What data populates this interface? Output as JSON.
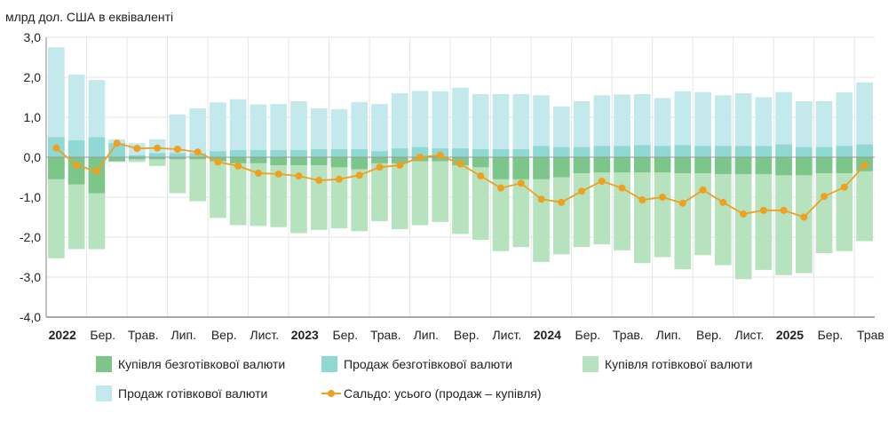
{
  "chart_data": {
    "type": "bar",
    "title": "",
    "ylabel": "млрд дол. США в еквіваленті",
    "xlabel": "",
    "ylim": [
      -4,
      3
    ],
    "yticks": [
      "3,0",
      "2,0",
      "1,0",
      "0,0",
      "-1,0",
      "-2,0",
      "-3,0",
      "-4,0"
    ],
    "x_tick_labels": [
      {
        "i": 0,
        "label": "2022",
        "bold": true
      },
      {
        "i": 2,
        "label": "Бер.",
        "bold": false
      },
      {
        "i": 4,
        "label": "Трав.",
        "bold": false
      },
      {
        "i": 6,
        "label": "Лип.",
        "bold": false
      },
      {
        "i": 8,
        "label": "Вер.",
        "bold": false
      },
      {
        "i": 10,
        "label": "Лист.",
        "bold": false
      },
      {
        "i": 12,
        "label": "2023",
        "bold": true
      },
      {
        "i": 14,
        "label": "Бер.",
        "bold": false
      },
      {
        "i": 16,
        "label": "Трав.",
        "bold": false
      },
      {
        "i": 18,
        "label": "Лип.",
        "bold": false
      },
      {
        "i": 20,
        "label": "Вер.",
        "bold": false
      },
      {
        "i": 22,
        "label": "Лист.",
        "bold": false
      },
      {
        "i": 24,
        "label": "2024",
        "bold": true
      },
      {
        "i": 26,
        "label": "Бер.",
        "bold": false
      },
      {
        "i": 28,
        "label": "Трав.",
        "bold": false
      },
      {
        "i": 30,
        "label": "Лип.",
        "bold": false
      },
      {
        "i": 32,
        "label": "Вер.",
        "bold": false
      },
      {
        "i": 34,
        "label": "Лист.",
        "bold": false
      },
      {
        "i": 36,
        "label": "2025",
        "bold": true
      },
      {
        "i": 38,
        "label": "Бер.",
        "bold": false
      },
      {
        "i": 40,
        "label": "Трав",
        "bold": false
      }
    ],
    "n_points": 41,
    "grid": true,
    "legend_position": "bottom",
    "series": [
      {
        "name": "Купівля безготівкової валюти",
        "kind": "bar",
        "color": "#7cc68a",
        "values": [
          -0.55,
          -0.68,
          -0.9,
          -0.1,
          -0.05,
          -0.05,
          -0.05,
          -0.05,
          -0.1,
          -0.15,
          -0.15,
          -0.2,
          -0.2,
          -0.2,
          -0.25,
          -0.3,
          -0.15,
          -0.15,
          -0.1,
          -0.1,
          -0.2,
          -0.25,
          -0.55,
          -0.55,
          -0.55,
          -0.5,
          -0.4,
          -0.38,
          -0.38,
          -0.38,
          -0.38,
          -0.4,
          -0.4,
          -0.42,
          -0.42,
          -0.42,
          -0.45,
          -0.45,
          -0.4,
          -0.4,
          -0.35
        ]
      },
      {
        "name": "Продаж безготівкової валюти",
        "kind": "bar",
        "color": "#8fd8d4",
        "values": [
          0.5,
          0.42,
          0.5,
          0.35,
          0.05,
          0.1,
          0.1,
          0.1,
          0.15,
          0.18,
          0.18,
          0.18,
          0.18,
          0.2,
          0.2,
          0.2,
          0.15,
          0.22,
          0.25,
          0.22,
          0.22,
          0.2,
          0.2,
          0.2,
          0.28,
          0.25,
          0.25,
          0.28,
          0.28,
          0.3,
          0.28,
          0.3,
          0.28,
          0.28,
          0.28,
          0.28,
          0.32,
          0.25,
          0.25,
          0.28,
          0.32
        ]
      },
      {
        "name": "Купівля готівкової валюти",
        "kind": "bar",
        "color": "#b6e3bd",
        "values": [
          -2.53,
          -2.3,
          -2.3,
          -0.12,
          -0.12,
          -0.22,
          -0.9,
          -1.1,
          -1.52,
          -1.7,
          -1.72,
          -1.75,
          -1.9,
          -1.82,
          -1.78,
          -1.85,
          -1.6,
          -1.8,
          -1.7,
          -1.62,
          -1.92,
          -2.07,
          -2.35,
          -2.25,
          -2.62,
          -2.43,
          -2.25,
          -2.18,
          -2.33,
          -2.65,
          -2.5,
          -2.8,
          -2.45,
          -2.7,
          -3.05,
          -2.82,
          -2.95,
          -2.9,
          -2.4,
          -2.35,
          -2.1
        ]
      },
      {
        "name": "Продаж готівкової валюти",
        "kind": "bar",
        "color": "#c4e9ec",
        "values": [
          2.75,
          2.07,
          1.93,
          0.45,
          0.35,
          0.45,
          1.07,
          1.22,
          1.37,
          1.45,
          1.32,
          1.33,
          1.4,
          1.22,
          1.2,
          1.38,
          1.33,
          1.6,
          1.66,
          1.65,
          1.74,
          1.58,
          1.58,
          1.58,
          1.55,
          1.27,
          1.4,
          1.55,
          1.57,
          1.58,
          1.48,
          1.65,
          1.63,
          1.55,
          1.6,
          1.5,
          1.63,
          1.4,
          1.4,
          1.62,
          1.87
        ]
      },
      {
        "name": "Сальдо: усього (продаж – купівля)",
        "kind": "line",
        "color": "#f0a020",
        "values": [
          0.23,
          -0.2,
          -0.35,
          0.35,
          0.22,
          0.23,
          0.2,
          0.13,
          -0.12,
          -0.22,
          -0.4,
          -0.42,
          -0.47,
          -0.58,
          -0.55,
          -0.45,
          -0.25,
          -0.2,
          0.0,
          0.05,
          -0.17,
          -0.47,
          -0.77,
          -0.65,
          -1.05,
          -1.13,
          -0.85,
          -0.6,
          -0.77,
          -1.07,
          -1.0,
          -1.15,
          -0.82,
          -1.13,
          -1.42,
          -1.33,
          -1.33,
          -1.5,
          -0.98,
          -0.75,
          -0.2
        ]
      }
    ]
  }
}
